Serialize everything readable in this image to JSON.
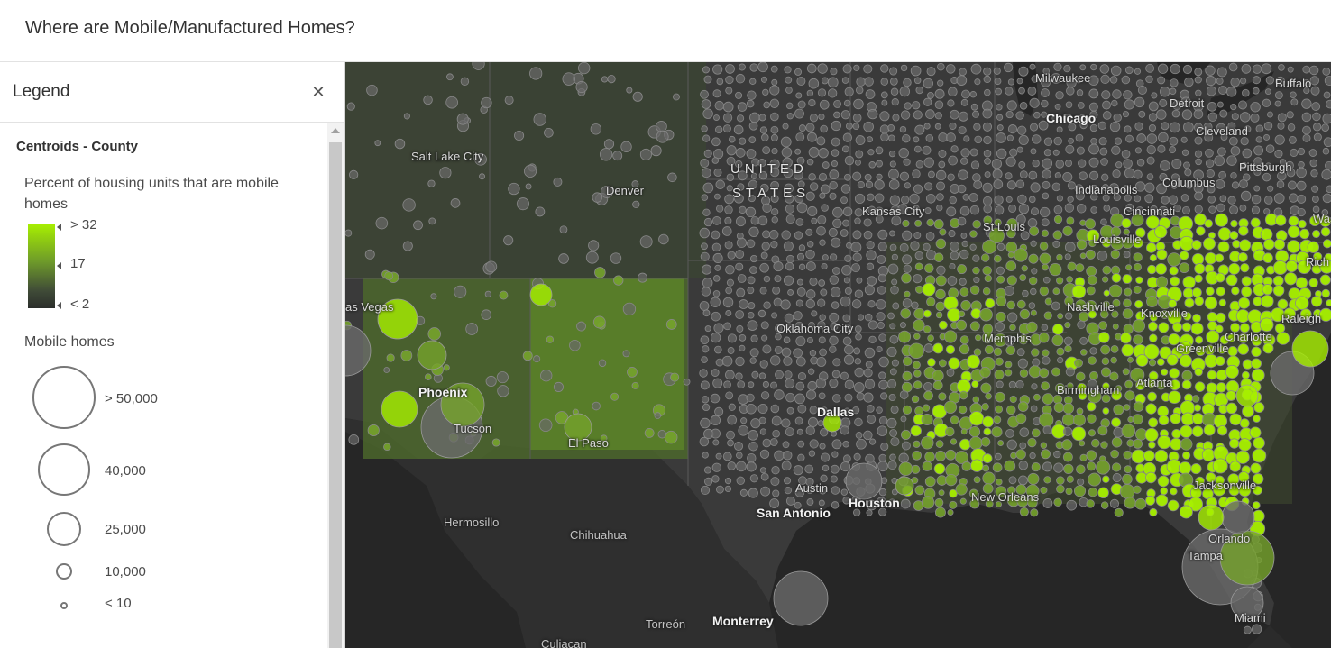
{
  "app": {
    "title": "Where are Mobile/Manufactured Homes?"
  },
  "legend": {
    "header": "Legend",
    "close_icon": "close-icon",
    "layer_title": "Centroids - County",
    "color_field_title": "Percent of housing units that are mobile homes",
    "color_ramp": {
      "colors": [
        "#a8f000",
        "#6e9a2a",
        "#2b2e2b"
      ],
      "labels": {
        "high": "> 32",
        "mid": "17",
        "low": "< 2"
      }
    },
    "size_field_title": "Mobile homes",
    "size_classes": [
      {
        "label": "> 50,000"
      },
      {
        "label": "40,000"
      },
      {
        "label": "25,000"
      },
      {
        "label": "10,000"
      },
      {
        "label": "< 10"
      }
    ]
  },
  "map": {
    "country_label": {
      "line1": "UNITED",
      "line2": "STATES"
    },
    "cities": {
      "milwaukee": "Milwaukee",
      "buffalo": "Buffalo",
      "detroit": "Detroit",
      "chicago": "Chicago",
      "cleveland": "Cleveland",
      "pittsburgh": "Pittsburgh",
      "salt_lake_city": "Salt Lake City",
      "denver": "Denver",
      "indianapolis": "Indianapolis",
      "columbus": "Columbus",
      "kansas_city": "Kansas City",
      "cincinnati": "Cincinnati",
      "washington": "Was",
      "st_louis": "St Louis",
      "louisville": "Louisville",
      "richmond": "Rich",
      "las_vegas": "as Vegas",
      "nashville": "Nashville",
      "knoxville": "Knoxville",
      "raleigh": "Raleigh",
      "oklahoma_city": "Oklahoma City",
      "memphis": "Memphis",
      "charlotte": "Charlotte",
      "greenville": "Greenville",
      "phoenix": "Phoenix",
      "atlanta": "Atlanta",
      "birmingham": "Birmingham",
      "dallas": "Dallas",
      "tucson": "Tucson",
      "el_paso": "El Paso",
      "jacksonville": "Jacksonville",
      "austin": "Austin",
      "new_orleans": "New Orleans",
      "houston": "Houston",
      "san_antonio": "San Antonio",
      "hermosillo": "Hermosillo",
      "chihuahua": "Chihuahua",
      "orlando": "Orlando",
      "tampa": "Tampa",
      "miami": "Miami",
      "torreon": "Torreón",
      "monterrey": "Monterrey",
      "culiacan": "Culiacan"
    },
    "colors": {
      "land": "#3a3a3a",
      "water": "#262626",
      "mexico": "#2f2f2f",
      "high": "#a8f000",
      "mid": "#76a32c",
      "low": "#6a6a6a"
    }
  }
}
